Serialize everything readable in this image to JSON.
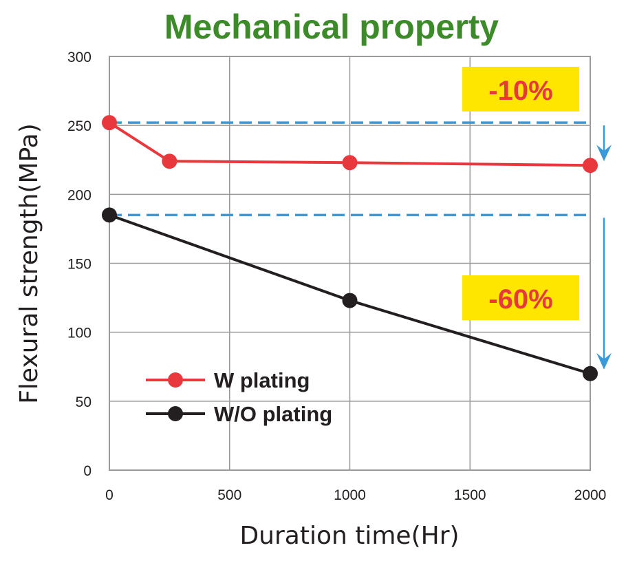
{
  "chart_data": {
    "type": "line",
    "title": "Mechanical property",
    "xlabel": "Duration time(Hr)",
    "ylabel": "Flexural strength(MPa)",
    "xlim": [
      0,
      2000
    ],
    "ylim": [
      0,
      300
    ],
    "xticks": [
      0,
      500,
      1000,
      1500,
      2000
    ],
    "yticks": [
      0,
      50,
      100,
      150,
      200,
      250,
      300
    ],
    "grid": true,
    "legend_position": "bottom-left",
    "series": [
      {
        "name": "W plating",
        "color": "#e8383d",
        "x": [
          0,
          250,
          1000,
          2000
        ],
        "y": [
          252,
          224,
          223,
          221
        ]
      },
      {
        "name": "W/O plating",
        "color": "#231f20",
        "x": [
          0,
          1000,
          2000
        ],
        "y": [
          185,
          123,
          70
        ]
      }
    ],
    "reference_lines": [
      {
        "series": "W plating",
        "y": 252,
        "color": "#3a9ad9"
      },
      {
        "series": "W/O plating",
        "y": 185,
        "color": "#3a9ad9"
      }
    ],
    "annotations": [
      {
        "text": "-10%",
        "series": "W plating",
        "background": "#ffe600"
      },
      {
        "text": "-60%",
        "series": "W/O plating",
        "background": "#ffe600"
      }
    ]
  }
}
